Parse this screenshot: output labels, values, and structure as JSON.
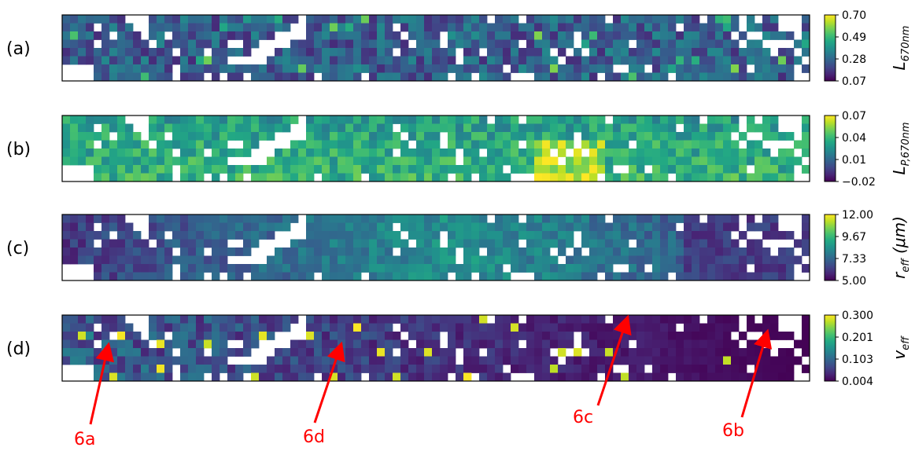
{
  "chart_data": [
    {
      "type": "heatmap",
      "panel_label": "(a)",
      "colorbar_label": {
        "main": "L",
        "sub": "670nm"
      },
      "colormap": "viridis",
      "range": [
        0.07,
        0.7
      ],
      "colorbar_ticks": [
        "0.70",
        "0.49",
        "0.28",
        "0.07"
      ],
      "mean_level": 0.3
    },
    {
      "type": "heatmap",
      "panel_label": "(b)",
      "colorbar_label": {
        "main": "L",
        "sub": "P,670nm"
      },
      "colormap": "viridis",
      "range": [
        -0.02,
        0.07
      ],
      "colorbar_ticks": [
        "0.07",
        "0.04",
        "0.01",
        "−0.02"
      ],
      "mean_level": 0.55
    },
    {
      "type": "heatmap",
      "panel_label": "(c)",
      "colorbar_label": {
        "main": "r",
        "sub": "eff",
        "suffix": " (μm)"
      },
      "colormap": "viridis",
      "range": [
        5.0,
        12.0
      ],
      "colorbar_ticks": [
        "12.00",
        "9.67",
        "7.33",
        "5.00"
      ],
      "mean_level": 0.2
    },
    {
      "type": "heatmap",
      "panel_label": "(d)",
      "colorbar_label": {
        "main": "v",
        "sub": "eff"
      },
      "colormap": "viridis",
      "range": [
        0.004,
        0.3
      ],
      "colorbar_ticks": [
        "0.300",
        "0.201",
        "0.103",
        "0.004"
      ],
      "mean_level": 0.12
    }
  ],
  "annotations": [
    {
      "label": "6a",
      "color": "#ff0000",
      "target_panel": "(d)"
    },
    {
      "label": "6d",
      "color": "#ff0000",
      "target_panel": "(d)"
    },
    {
      "label": "6c",
      "color": "#ff0000",
      "target_panel": "(d)"
    },
    {
      "label": "6b",
      "color": "#ff0000",
      "target_panel": "(d)"
    }
  ]
}
